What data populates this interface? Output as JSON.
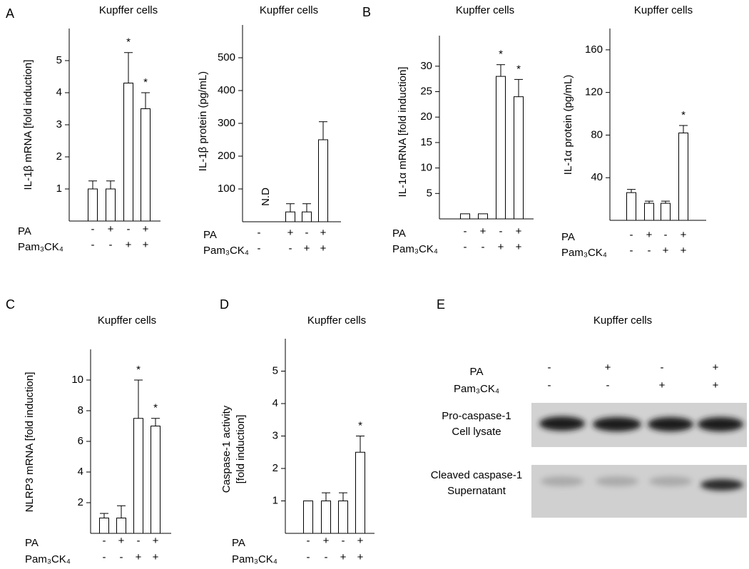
{
  "panel_labels": [
    "A",
    "B",
    "C",
    "D",
    "E"
  ],
  "chart_data": [
    {
      "type": "bar",
      "title": "Kupffer cells",
      "y_label": "IL-1β mRNA [fold induction]",
      "values": [
        1,
        1,
        4.3,
        3.5
      ],
      "errors": [
        0.25,
        0.25,
        0.95,
        0.5
      ],
      "significance": [
        null,
        null,
        "*",
        "*"
      ],
      "ylim": [
        0,
        6
      ],
      "yticks": [
        1,
        2,
        3,
        4,
        5
      ],
      "color": "#ffffff",
      "conditions": [
        {
          "name": "PA",
          "values": [
            "-",
            "+",
            "-",
            "+"
          ]
        },
        {
          "name": "Pam₃CK₄",
          "values": [
            "-",
            "-",
            "+",
            "+"
          ]
        }
      ]
    },
    {
      "type": "bar",
      "title": "Kupffer cells",
      "y_label": "IL-1β protein (pg/mL)",
      "values": [
        null,
        30,
        30,
        250
      ],
      "errors": [
        null,
        25,
        25,
        55
      ],
      "value_labels": [
        "N.D",
        null,
        null,
        null
      ],
      "ylim": [
        0,
        600
      ],
      "yticks": [
        100,
        200,
        300,
        400,
        500
      ],
      "color": "#ffffff",
      "conditions": [
        {
          "name": "PA",
          "values": [
            "-",
            "+",
            "-",
            "+"
          ]
        },
        {
          "name": "Pam₃CK₄",
          "values": [
            "-",
            "-",
            "+",
            "+"
          ]
        }
      ]
    },
    {
      "type": "bar",
      "title": "Kupffer cells",
      "y_label": "IL-1α mRNA [fold induction]",
      "values": [
        1,
        1,
        28,
        24
      ],
      "errors": [
        0,
        0,
        2.3,
        3.4
      ],
      "significance": [
        null,
        null,
        "*",
        "*"
      ],
      "ylim": [
        0,
        36
      ],
      "yticks": [
        5,
        10,
        15,
        20,
        25,
        30
      ],
      "color": "#ffffff",
      "conditions": [
        {
          "name": "PA",
          "values": [
            "-",
            "+",
            "-",
            "+"
          ]
        },
        {
          "name": "Pam₃CK₄",
          "values": [
            "-",
            "-",
            "+",
            "+"
          ]
        }
      ]
    },
    {
      "type": "bar",
      "title": "Kupffer cells",
      "y_label": "IL-1α protein (pg/mL)",
      "values": [
        26,
        16,
        16,
        82
      ],
      "errors": [
        3,
        2,
        2,
        7
      ],
      "significance": [
        null,
        null,
        null,
        "*"
      ],
      "ylim": [
        0,
        180
      ],
      "yticks": [
        40,
        80,
        120,
        160
      ],
      "color": "#ffffff",
      "conditions": [
        {
          "name": "PA",
          "values": [
            "-",
            "+",
            "-",
            "+"
          ]
        },
        {
          "name": "Pam₃CK₄",
          "values": [
            "-",
            "-",
            "+",
            "+"
          ]
        }
      ]
    },
    {
      "type": "bar",
      "title": "Kupffer cells",
      "y_label": "NLRP3 mRNA [fold induction]",
      "values": [
        1,
        1,
        7.5,
        7
      ],
      "errors": [
        0.3,
        0.8,
        2.5,
        0.5
      ],
      "significance": [
        null,
        null,
        "*",
        "*"
      ],
      "ylim": [
        0,
        12
      ],
      "yticks": [
        2,
        4,
        6,
        8,
        10
      ],
      "color": "#ffffff",
      "conditions": [
        {
          "name": "PA",
          "values": [
            "-",
            "+",
            "-",
            "+"
          ]
        },
        {
          "name": "Pam₃CK₄",
          "values": [
            "-",
            "-",
            "+",
            "+"
          ]
        }
      ]
    },
    {
      "type": "bar",
      "title": "Kupffer cells",
      "y_label": [
        "Caspase-1 activity",
        "[fold induction]"
      ],
      "values": [
        1,
        1,
        1,
        2.5
      ],
      "errors": [
        0,
        0.25,
        0.25,
        0.5
      ],
      "significance": [
        null,
        null,
        null,
        "*"
      ],
      "ylim": [
        0,
        6
      ],
      "yticks": [
        1,
        2,
        3,
        4,
        5
      ],
      "color": "#ffffff",
      "conditions": [
        {
          "name": "PA",
          "values": [
            "-",
            "+",
            "-",
            "+"
          ]
        },
        {
          "name": "Pam₃CK₄",
          "values": [
            "-",
            "-",
            "+",
            "+"
          ]
        }
      ]
    }
  ],
  "blot": {
    "title": "Kupffer cells",
    "conditions": [
      {
        "name": "PA",
        "values": [
          "-",
          "+",
          "-",
          "+"
        ]
      },
      {
        "name": "Pam₃CK₄",
        "values": [
          "-",
          "-",
          "+",
          "+"
        ]
      }
    ],
    "rows": [
      [
        "Pro-caspase-1",
        "Cell lysate"
      ],
      [
        "Cleaved caspase-1",
        "Supernatant"
      ]
    ]
  }
}
